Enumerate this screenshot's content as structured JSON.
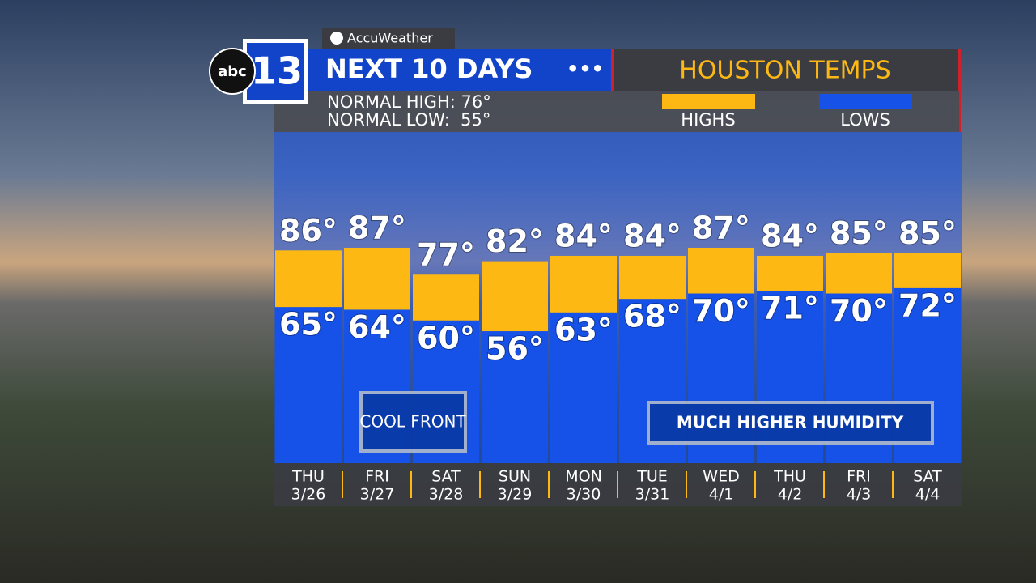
{
  "brand": {
    "logo_text": "abc",
    "logo_number": "13",
    "provider": "AccuWeather"
  },
  "chart_data": {
    "type": "range-bar",
    "title": "NEXT 10 DAYS",
    "subtitle": "HOUSTON TEMPS",
    "notes": [
      "NORMAL HIGH: 76°",
      "NORMAL LOW:  55°"
    ],
    "categories": [
      "THU",
      "FRI",
      "SAT",
      "SUN",
      "MON",
      "TUE",
      "WED",
      "THU",
      "FRI",
      "SAT"
    ],
    "dates": [
      "3/26",
      "3/27",
      "3/28",
      "3/29",
      "3/30",
      "3/31",
      "4/1",
      "4/2",
      "4/3",
      "4/4"
    ],
    "series": [
      {
        "name": "HIGHS",
        "color": "#fdb813",
        "values": [
          86,
          87,
          77,
          82,
          84,
          84,
          87,
          84,
          85,
          85
        ],
        "value_labels": [
          "86°",
          "87°",
          "77°",
          "82°",
          "84°",
          "84°",
          "87°",
          "84°",
          "85°",
          "85°"
        ]
      },
      {
        "name": "LOWS",
        "color": "#1652e8",
        "values": [
          65,
          64,
          60,
          56,
          63,
          68,
          70,
          71,
          70,
          72
        ],
        "value_labels": [
          "65°",
          "64°",
          "60°",
          "56°",
          "63°",
          "68°",
          "70°",
          "71°",
          "70°",
          "72°"
        ]
      }
    ],
    "ylim": [
      7,
      130
    ],
    "annotations": [
      "COOL FRONT",
      "MUCH HIGHER HUMIDITY"
    ]
  }
}
